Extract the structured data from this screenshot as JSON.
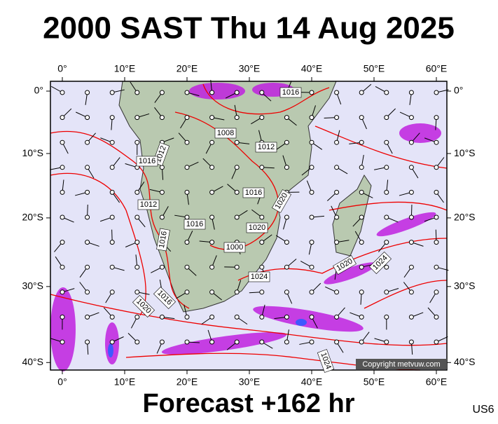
{
  "title": "2000 SAST Thu 14 Aug 2025",
  "footer": "Forecast +162 hr",
  "model": "US6",
  "copyright": "Copyright metvuw.com",
  "map": {
    "lon_ticks": [
      {
        "value": 0,
        "label": "0°"
      },
      {
        "value": 10,
        "label": "10°E"
      },
      {
        "value": 20,
        "label": "20°E"
      },
      {
        "value": 30,
        "label": "30°E"
      },
      {
        "value": 40,
        "label": "40°E"
      },
      {
        "value": 50,
        "label": "50°E"
      },
      {
        "value": 60,
        "label": "60°E"
      }
    ],
    "lat_ticks": [
      {
        "value": 0,
        "label": "0°"
      },
      {
        "value": -10,
        "label": "10°S"
      },
      {
        "value": -20,
        "label": "20°S"
      },
      {
        "value": -30,
        "label": "30°S"
      },
      {
        "value": -40,
        "label": "40°S"
      }
    ],
    "isobar_labels": [
      1016,
      1008,
      1012,
      1012,
      1016,
      1012,
      1016,
      1016,
      1020,
      1020,
      1016,
      1000,
      1024,
      1020,
      1024,
      1016,
      1020,
      1024
    ]
  }
}
